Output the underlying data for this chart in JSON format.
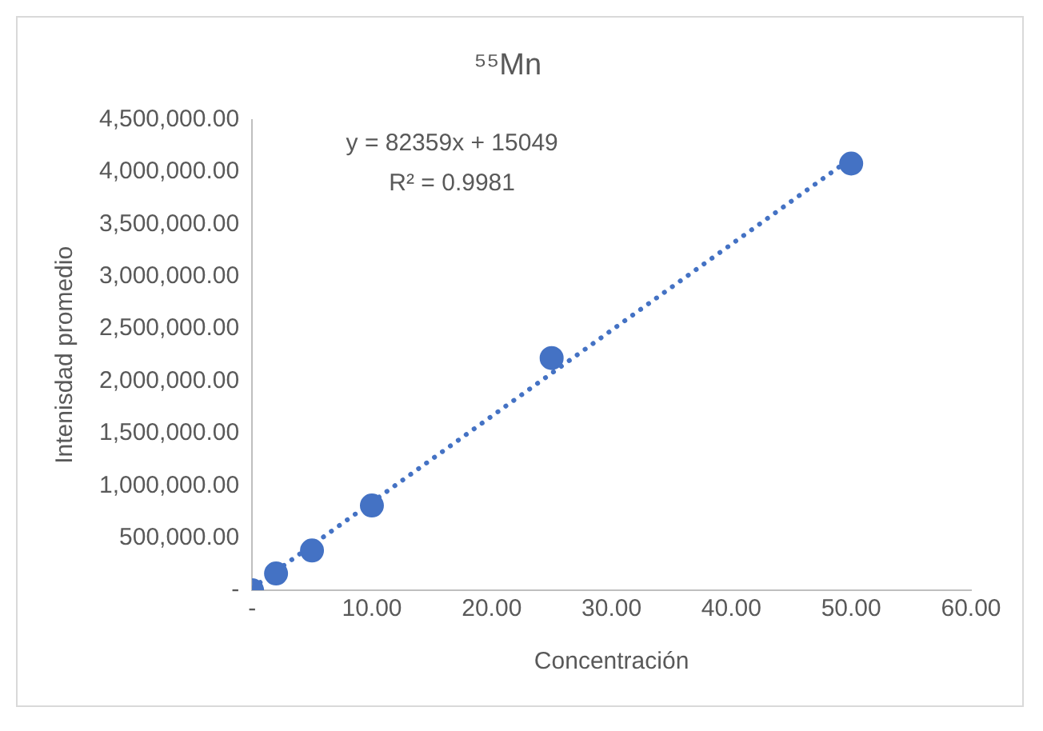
{
  "chart_data": {
    "type": "scatter",
    "title": "⁵⁵Mn",
    "xlabel": "Concentración",
    "ylabel": "Intenisdad promedio",
    "x": [
      0,
      2,
      5,
      10,
      25,
      50
    ],
    "series": [
      {
        "color": "#4472c4",
        "values": [
          0,
          160000,
          380000,
          810000,
          2220000,
          4080000
        ],
        "marker": "circle"
      },
      {
        "type": "line",
        "color": "#4472c4",
        "x": [
          0,
          50
        ],
        "values": [
          20000,
          4130000
        ],
        "line_style": "dotted",
        "marker": "none"
      }
    ],
    "xlim": [
      0,
      60
    ],
    "xticks": [
      {
        "value": 0,
        "label": "-"
      },
      {
        "value": 10,
        "label": "10.00"
      },
      {
        "value": 20,
        "label": "20.00"
      },
      {
        "value": 30,
        "label": "30.00"
      },
      {
        "value": 40,
        "label": "40.00"
      },
      {
        "value": 50,
        "label": "50.00"
      },
      {
        "value": 60,
        "label": "60.00"
      }
    ],
    "ylim": [
      0,
      4500000
    ],
    "yticks": [
      {
        "value": 0,
        "label": "-"
      },
      {
        "value": 500000,
        "label": "500,000.00"
      },
      {
        "value": 1000000,
        "label": "1,000,000.00"
      },
      {
        "value": 1500000,
        "label": "1,500,000.00"
      },
      {
        "value": 2000000,
        "label": "2,000,000.00"
      },
      {
        "value": 2500000,
        "label": "2,500,000.00"
      },
      {
        "value": 3000000,
        "label": "3,000,000.00"
      },
      {
        "value": 3500000,
        "label": "3,500,000.00"
      },
      {
        "value": 4000000,
        "label": "4,000,000.00"
      },
      {
        "value": 4500000,
        "label": "4,500,000.00"
      }
    ],
    "annotations": [
      "y = 82359x + 15049",
      "R² = 0.9981"
    ],
    "grid": false,
    "legend": false
  }
}
